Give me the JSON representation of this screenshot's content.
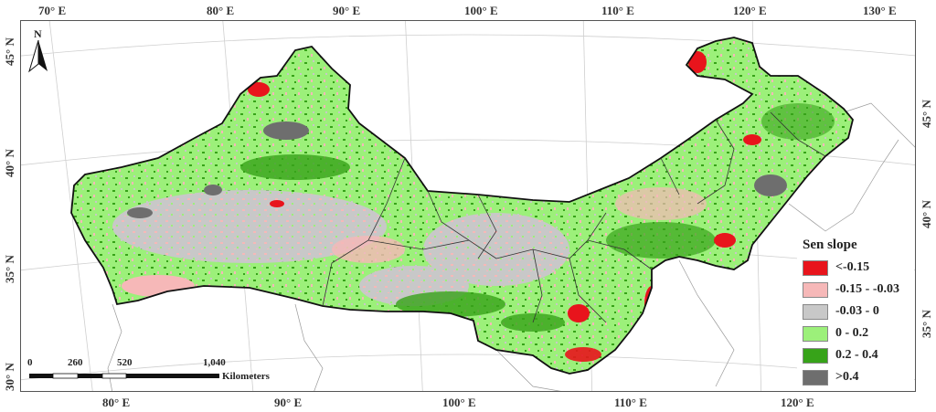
{
  "map": {
    "top_ticks": [
      "70° E",
      "80° E",
      "90° E",
      "100° E",
      "110° E",
      "120° E",
      "130° E"
    ],
    "bottom_ticks": [
      "80° E",
      "90° E",
      "100° E",
      "110° E",
      "120° E"
    ],
    "left_ticks": [
      "45° N",
      "40° N",
      "35° N",
      "30° N"
    ],
    "right_ticks": [
      "45° N",
      "40° N",
      "35° N"
    ],
    "north_label": "N"
  },
  "legend": {
    "title": "Sen slope",
    "items": [
      {
        "label": "<-0.15",
        "color": "#e8141c"
      },
      {
        "label": "-0.15 - -0.03",
        "color": "#f6b8b8"
      },
      {
        "label": "-0.03 - 0",
        "color": "#c8c8c8"
      },
      {
        "label": "0 - 0.2",
        "color": "#9cf07a"
      },
      {
        "label": "0.2 - 0.4",
        "color": "#37a319"
      },
      {
        "label": ">0.4",
        "color": "#6e6e6e"
      }
    ]
  },
  "scalebar": {
    "labels": [
      "0",
      "260",
      "520",
      "1,040"
    ],
    "unit": "Kilometers"
  }
}
